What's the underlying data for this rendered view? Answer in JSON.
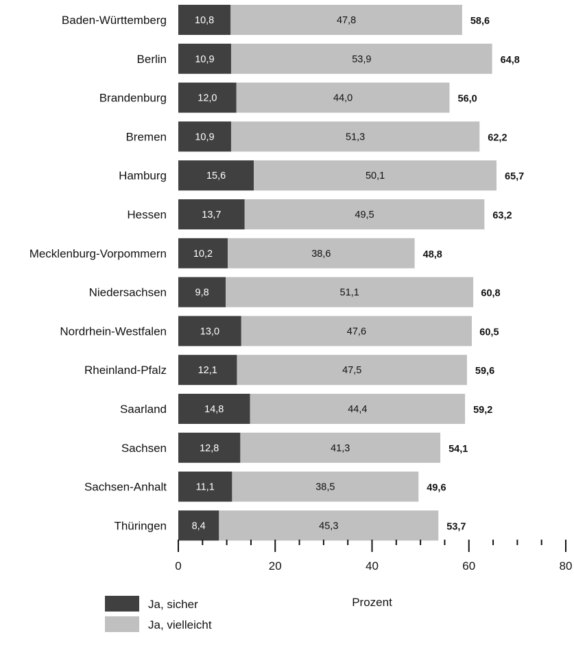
{
  "chart_data": {
    "type": "bar",
    "orientation": "horizontal",
    "stacked": true,
    "categories": [
      "Baden-Württemberg",
      "Berlin",
      "Brandenburg",
      "Bremen",
      "Hamburg",
      "Hessen",
      "Mecklenburg-Vorpommern",
      "Niedersachsen",
      "Nordrhein-Westfalen",
      "Rheinland-Pfalz",
      "Saarland",
      "Sachsen",
      "Sachsen-Anhalt",
      "Thüringen"
    ],
    "series": [
      {
        "name": "Ja, sicher",
        "color": "#404040",
        "label_color": "#ffffff",
        "values": [
          10.8,
          10.9,
          12.0,
          10.9,
          15.6,
          13.7,
          10.2,
          9.8,
          13.0,
          12.1,
          14.8,
          12.8,
          11.1,
          8.4
        ],
        "labels": [
          "10,8",
          "10,9",
          "12,0",
          "10,9",
          "15,6",
          "13,7",
          "10,2",
          "9,8",
          "13,0",
          "12,1",
          "14,8",
          "12,8",
          "11,1",
          "8,4"
        ]
      },
      {
        "name": "Ja, vielleicht",
        "color": "#c0c0c0",
        "label_color": "#111111",
        "values": [
          47.8,
          53.9,
          44.0,
          51.3,
          50.1,
          49.5,
          38.6,
          51.1,
          47.6,
          47.5,
          44.4,
          41.3,
          38.5,
          45.3
        ],
        "labels": [
          "47,8",
          "53,9",
          "44,0",
          "51,3",
          "50,1",
          "49,5",
          "38,6",
          "51,1",
          "47,6",
          "47,5",
          "44,4",
          "41,3",
          "38,5",
          "45,3"
        ]
      }
    ],
    "totals": [
      58.6,
      64.8,
      56.0,
      62.2,
      65.7,
      63.2,
      48.8,
      60.8,
      60.5,
      59.6,
      59.2,
      54.1,
      49.6,
      53.7
    ],
    "total_labels": [
      "58,6",
      "64,8",
      "56,0",
      "62,2",
      "65,7",
      "63,2",
      "48,8",
      "60,8",
      "60,5",
      "59,6",
      "59,2",
      "54,1",
      "49,6",
      "53,7"
    ],
    "xlabel": "Prozent",
    "xlim": [
      0,
      80
    ],
    "xticks": [
      0,
      20,
      40,
      60,
      80
    ],
    "xtick_labels": [
      "0",
      "20",
      "40",
      "60",
      "80"
    ],
    "minor_tick_step": 5,
    "grid": false,
    "legend_position": "bottom-left"
  }
}
